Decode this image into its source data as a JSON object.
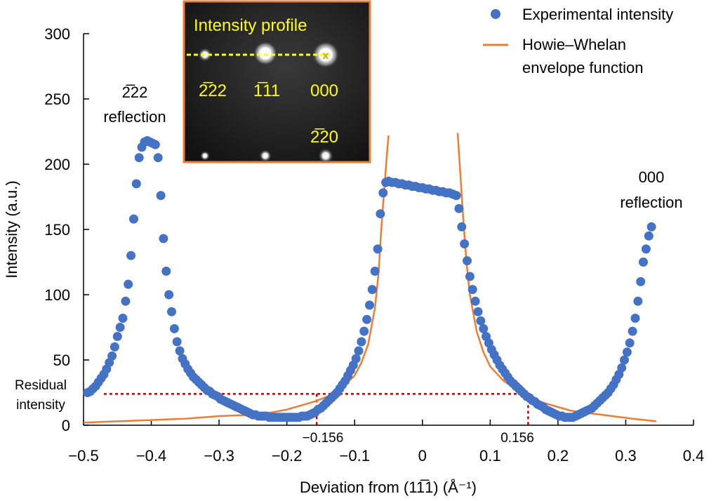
{
  "chart_data": {
    "type": "scatter",
    "xlabel": "Deviation from (11̅1) (Å⁻¹)",
    "ylabel": "Intensity (a.u.)",
    "xlim": [
      -0.5,
      0.4
    ],
    "ylim": [
      0,
      300
    ],
    "x_ticks": [
      "−0.5",
      "−0.4",
      "−0.3",
      "−0.2",
      "−0.1",
      "0",
      "0.1",
      "0.2",
      "0.3",
      "0.4"
    ],
    "y_ticks": [
      "0",
      "50",
      "100",
      "150",
      "200",
      "250",
      "300"
    ],
    "grid": false,
    "legend_position": "top-right",
    "series": [
      {
        "name": "Experimental intensity",
        "kind": "scatter",
        "color": "#4472c4",
        "points": [
          [
            -0.494,
            25
          ],
          [
            -0.49,
            26
          ],
          [
            -0.486,
            28
          ],
          [
            -0.482,
            30
          ],
          [
            -0.478,
            33
          ],
          [
            -0.474,
            36
          ],
          [
            -0.47,
            39
          ],
          [
            -0.466,
            43
          ],
          [
            -0.462,
            48
          ],
          [
            -0.458,
            53
          ],
          [
            -0.454,
            60
          ],
          [
            -0.45,
            68
          ],
          [
            -0.446,
            75
          ],
          [
            -0.442,
            82
          ],
          [
            -0.438,
            95
          ],
          [
            -0.434,
            108
          ],
          [
            -0.43,
            130
          ],
          [
            -0.426,
            158
          ],
          [
            -0.422,
            185
          ],
          [
            -0.418,
            205
          ],
          [
            -0.414,
            213
          ],
          [
            -0.41,
            217
          ],
          [
            -0.406,
            218
          ],
          [
            -0.402,
            217
          ],
          [
            -0.398,
            216
          ],
          [
            -0.394,
            215
          ],
          [
            -0.39,
            205
          ],
          [
            -0.386,
            176
          ],
          [
            -0.382,
            143
          ],
          [
            -0.378,
            118
          ],
          [
            -0.374,
            100
          ],
          [
            -0.37,
            87
          ],
          [
            -0.366,
            74
          ],
          [
            -0.362,
            64
          ],
          [
            -0.358,
            57
          ],
          [
            -0.354,
            51
          ],
          [
            -0.35,
            47
          ],
          [
            -0.346,
            43
          ],
          [
            -0.342,
            40
          ],
          [
            -0.338,
            37
          ],
          [
            -0.334,
            35
          ],
          [
            -0.33,
            33
          ],
          [
            -0.326,
            31
          ],
          [
            -0.322,
            29
          ],
          [
            -0.318,
            27
          ],
          [
            -0.314,
            26
          ],
          [
            -0.31,
            24
          ],
          [
            -0.306,
            23
          ],
          [
            -0.302,
            22
          ],
          [
            -0.298,
            20
          ],
          [
            -0.294,
            19
          ],
          [
            -0.29,
            18
          ],
          [
            -0.286,
            17
          ],
          [
            -0.282,
            16
          ],
          [
            -0.278,
            15
          ],
          [
            -0.274,
            14
          ],
          [
            -0.27,
            13
          ],
          [
            -0.266,
            12
          ],
          [
            -0.262,
            11
          ],
          [
            -0.258,
            10
          ],
          [
            -0.254,
            9
          ],
          [
            -0.25,
            8
          ],
          [
            -0.246,
            8
          ],
          [
            -0.242,
            7
          ],
          [
            -0.238,
            7
          ],
          [
            -0.234,
            7
          ],
          [
            -0.23,
            7
          ],
          [
            -0.226,
            6
          ],
          [
            -0.222,
            6
          ],
          [
            -0.218,
            6
          ],
          [
            -0.214,
            6
          ],
          [
            -0.21,
            6
          ],
          [
            -0.206,
            6
          ],
          [
            -0.202,
            6
          ],
          [
            -0.198,
            6
          ],
          [
            -0.194,
            6
          ],
          [
            -0.19,
            6
          ],
          [
            -0.186,
            6
          ],
          [
            -0.182,
            6
          ],
          [
            -0.178,
            7
          ],
          [
            -0.174,
            7
          ],
          [
            -0.17,
            7
          ],
          [
            -0.166,
            8
          ],
          [
            -0.162,
            9
          ],
          [
            -0.158,
            10
          ],
          [
            -0.154,
            12
          ],
          [
            -0.15,
            13
          ],
          [
            -0.146,
            15
          ],
          [
            -0.142,
            17
          ],
          [
            -0.138,
            19
          ],
          [
            -0.134,
            21
          ],
          [
            -0.13,
            23
          ],
          [
            -0.126,
            25
          ],
          [
            -0.122,
            28
          ],
          [
            -0.118,
            31
          ],
          [
            -0.114,
            34
          ],
          [
            -0.11,
            38
          ],
          [
            -0.106,
            42
          ],
          [
            -0.102,
            46
          ],
          [
            -0.098,
            51
          ],
          [
            -0.094,
            57
          ],
          [
            -0.09,
            64
          ],
          [
            -0.086,
            72
          ],
          [
            -0.082,
            81
          ],
          [
            -0.078,
            92
          ],
          [
            -0.074,
            104
          ],
          [
            -0.07,
            118
          ],
          [
            -0.066,
            135
          ],
          [
            -0.062,
            162
          ],
          [
            -0.058,
            178
          ],
          [
            -0.054,
            186
          ],
          [
            -0.05,
            187
          ],
          [
            -0.045,
            186
          ],
          [
            -0.04,
            186
          ],
          [
            -0.035,
            185
          ],
          [
            -0.03,
            185
          ],
          [
            -0.025,
            184
          ],
          [
            -0.02,
            184
          ],
          [
            -0.015,
            183
          ],
          [
            -0.01,
            183
          ],
          [
            -0.005,
            182
          ],
          [
            0.0,
            182
          ],
          [
            0.005,
            181
          ],
          [
            0.01,
            181
          ],
          [
            0.015,
            180
          ],
          [
            0.02,
            180
          ],
          [
            0.025,
            179
          ],
          [
            0.03,
            179
          ],
          [
            0.035,
            178
          ],
          [
            0.04,
            178
          ],
          [
            0.045,
            177
          ],
          [
            0.05,
            176
          ],
          [
            0.054,
            166
          ],
          [
            0.058,
            152
          ],
          [
            0.062,
            139
          ],
          [
            0.066,
            126
          ],
          [
            0.07,
            114
          ],
          [
            0.074,
            104
          ],
          [
            0.078,
            95
          ],
          [
            0.082,
            87
          ],
          [
            0.086,
            80
          ],
          [
            0.09,
            74
          ],
          [
            0.094,
            68
          ],
          [
            0.098,
            63
          ],
          [
            0.102,
            58
          ],
          [
            0.106,
            54
          ],
          [
            0.11,
            50
          ],
          [
            0.114,
            46
          ],
          [
            0.118,
            43
          ],
          [
            0.122,
            40
          ],
          [
            0.126,
            37
          ],
          [
            0.13,
            34
          ],
          [
            0.134,
            32
          ],
          [
            0.138,
            30
          ],
          [
            0.142,
            28
          ],
          [
            0.146,
            26
          ],
          [
            0.15,
            24
          ],
          [
            0.154,
            22
          ],
          [
            0.158,
            21
          ],
          [
            0.162,
            19
          ],
          [
            0.166,
            18
          ],
          [
            0.17,
            16
          ],
          [
            0.174,
            15
          ],
          [
            0.178,
            14
          ],
          [
            0.182,
            12
          ],
          [
            0.186,
            11
          ],
          [
            0.19,
            10
          ],
          [
            0.194,
            9
          ],
          [
            0.198,
            8
          ],
          [
            0.202,
            7
          ],
          [
            0.206,
            7
          ],
          [
            0.21,
            6
          ],
          [
            0.214,
            6
          ],
          [
            0.218,
            6
          ],
          [
            0.222,
            6
          ],
          [
            0.226,
            7
          ],
          [
            0.23,
            8
          ],
          [
            0.234,
            9
          ],
          [
            0.238,
            10
          ],
          [
            0.242,
            11
          ],
          [
            0.246,
            12
          ],
          [
            0.25,
            13
          ],
          [
            0.254,
            15
          ],
          [
            0.258,
            17
          ],
          [
            0.262,
            19
          ],
          [
            0.266,
            21
          ],
          [
            0.27,
            23
          ],
          [
            0.274,
            25
          ],
          [
            0.278,
            28
          ],
          [
            0.282,
            31
          ],
          [
            0.286,
            35
          ],
          [
            0.29,
            39
          ],
          [
            0.294,
            44
          ],
          [
            0.298,
            50
          ],
          [
            0.302,
            56
          ],
          [
            0.306,
            63
          ],
          [
            0.31,
            72
          ],
          [
            0.314,
            82
          ],
          [
            0.318,
            95
          ],
          [
            0.322,
            110
          ],
          [
            0.326,
            125
          ],
          [
            0.33,
            135
          ],
          [
            0.334,
            145
          ],
          [
            0.338,
            152
          ]
        ]
      },
      {
        "name": "Howie–Whelan envelope function",
        "kind": "line",
        "color": "#ed7d31",
        "segments": [
          [
            [
              -0.5,
              2
            ],
            [
              -0.45,
              3
            ],
            [
              -0.4,
              4
            ],
            [
              -0.35,
              5
            ],
            [
              -0.3,
              7
            ],
            [
              -0.25,
              8
            ],
            [
              -0.22,
              10
            ],
            [
              -0.2,
              12
            ],
            [
              -0.18,
              15
            ],
            [
              -0.16,
              18
            ],
            [
              -0.14,
              22
            ],
            [
              -0.12,
              28
            ],
            [
              -0.1,
              38
            ],
            [
              -0.09,
              48
            ],
            [
              -0.08,
              62
            ],
            [
              -0.07,
              90
            ],
            [
              -0.065,
              115
            ],
            [
              -0.06,
              155
            ],
            [
              -0.055,
              190
            ],
            [
              -0.052,
              210
            ],
            [
              -0.05,
              222
            ]
          ],
          [
            [
              0.052,
              224
            ],
            [
              0.055,
              200
            ],
            [
              0.06,
              160
            ],
            [
              0.065,
              125
            ],
            [
              0.07,
              100
            ],
            [
              0.08,
              72
            ],
            [
              0.09,
              56
            ],
            [
              0.1,
              45
            ],
            [
              0.12,
              34
            ],
            [
              0.14,
              27
            ],
            [
              0.16,
              21
            ],
            [
              0.18,
              17
            ],
            [
              0.2,
              14
            ],
            [
              0.22,
              11
            ],
            [
              0.25,
              9
            ],
            [
              0.28,
              7
            ],
            [
              0.31,
              5
            ],
            [
              0.345,
              3
            ]
          ]
        ]
      }
    ],
    "residual_intensity_level": 24,
    "marked_x_values": [
      -0.156,
      0.156
    ],
    "annotations": {
      "left_peak": [
        "2̅22",
        "reflection"
      ],
      "right_peak": [
        "000",
        "reflection"
      ],
      "residual": [
        "Residual",
        "intensity"
      ],
      "neg_mark": "−0.156",
      "pos_mark": "0.156"
    }
  },
  "inset": {
    "title": "Intensity profile",
    "labels": [
      "2̅22",
      "1̅11",
      "000",
      "2̅20"
    ]
  }
}
